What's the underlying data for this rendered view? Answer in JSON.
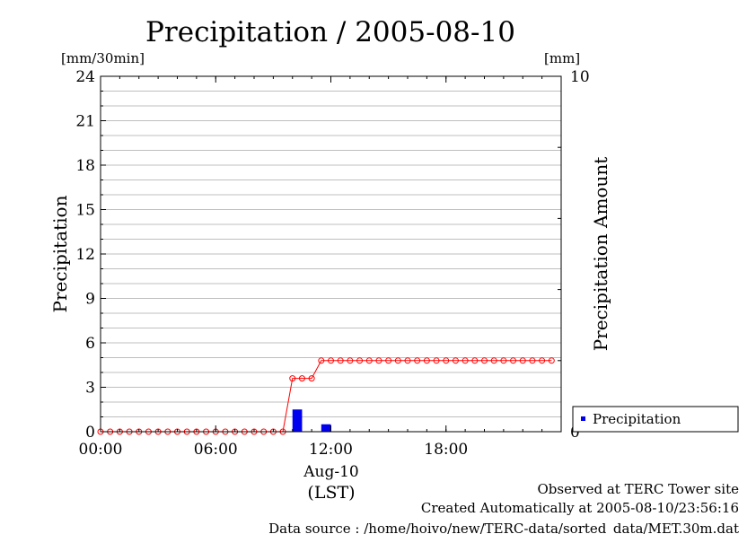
{
  "chart_data": {
    "type": "bar",
    "title": "Precipitation / 2005-08-10",
    "ylabel_left": "Precipitation",
    "ylabel_right": "Precipitation Amount",
    "unit_left": "[mm/30min]",
    "unit_right": "[mm]",
    "xlabel_date": "Aug-10",
    "xlabel_tz": "(LST)",
    "x_range_hours": [
      0,
      24
    ],
    "x_ticks": [
      "00:00",
      "06:00",
      "12:00",
      "18:00"
    ],
    "x_tick_hours": [
      0,
      6,
      12,
      18
    ],
    "ylim_left": [
      0,
      24
    ],
    "y_ticks_left": [
      "0",
      "3",
      "6",
      "9",
      "12",
      "15",
      "18",
      "21",
      "24"
    ],
    "y_tick_values_left": [
      0,
      3,
      6,
      9,
      12,
      15,
      18,
      21,
      24
    ],
    "ylim_right": [
      0,
      10
    ],
    "y_ticks_right": [
      "0",
      "10"
    ],
    "y_tick_values_right": [
      0,
      10
    ],
    "grid": true,
    "legend_position": "bottom-right, outside plot",
    "series": [
      {
        "name": "Precipitation",
        "kind": "bar",
        "axis": "left",
        "color": "#0000ee",
        "bars": [
          {
            "start_hour": 10.0,
            "value": 1.5
          },
          {
            "start_hour": 11.5,
            "value": 0.5
          }
        ]
      },
      {
        "kind": "line-cumulative",
        "axis": "right",
        "color": "#ff0000",
        "step_hours": 0.5,
        "values": [
          0,
          0,
          0,
          0,
          0,
          0,
          0,
          0,
          0,
          0,
          0,
          0,
          0,
          0,
          0,
          0,
          0,
          0,
          0,
          0,
          1.5,
          1.5,
          1.5,
          2.0,
          2.0,
          2.0,
          2.0,
          2.0,
          2.0,
          2.0,
          2.0,
          2.0,
          2.0,
          2.0,
          2.0,
          2.0,
          2.0,
          2.0,
          2.0,
          2.0,
          2.0,
          2.0,
          2.0,
          2.0,
          2.0,
          2.0,
          2.0,
          2.0
        ]
      }
    ]
  },
  "footer": {
    "line1": "Observed at TERC Tower site",
    "line2": "Created Automatically at 2005-08-10/23:56:16",
    "line3": "Data source : /home/hoivo/new/TERC-data/sorted_data/MET.30m.dat"
  },
  "colors": {
    "bar": "#0000ee",
    "cumulative": "#ff0000",
    "grid": "#aaaaaa"
  }
}
